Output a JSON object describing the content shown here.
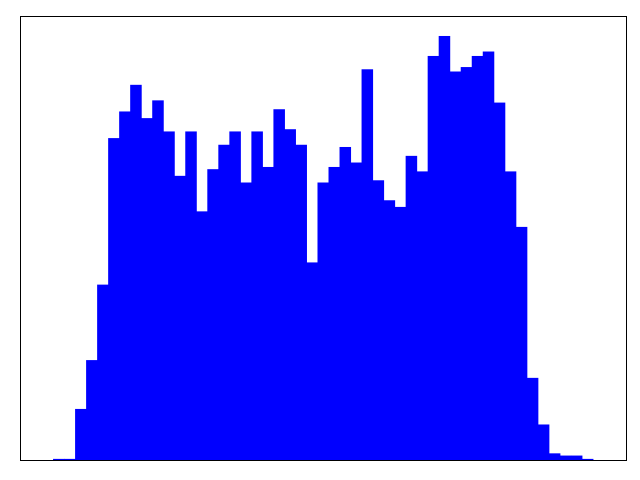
{
  "chart_data": {
    "type": "bar",
    "title": "",
    "xlabel": "",
    "ylabel": "",
    "color": "#0000ff",
    "frame_color": "#000000",
    "background": "#ffffff",
    "grid": false,
    "legend": "none",
    "ylim": [
      0,
      100
    ],
    "bins": 55,
    "values": [
      0,
      0,
      0,
      0.25,
      0.25,
      11.5,
      22.5,
      39.5,
      72.5,
      78.5,
      84.5,
      77,
      81,
      74,
      64,
      74,
      56,
      65.5,
      71,
      74,
      62.5,
      74,
      66,
      79,
      74.5,
      71,
      44.5,
      62.5,
      66,
      70.5,
      67,
      88,
      63,
      58.5,
      57,
      68.5,
      65,
      91,
      95.5,
      87.5,
      88.5,
      91,
      92,
      80.5,
      65,
      52.5,
      18.5,
      8,
      1.5,
      1,
      1,
      0.25,
      0,
      0,
      0
    ]
  }
}
